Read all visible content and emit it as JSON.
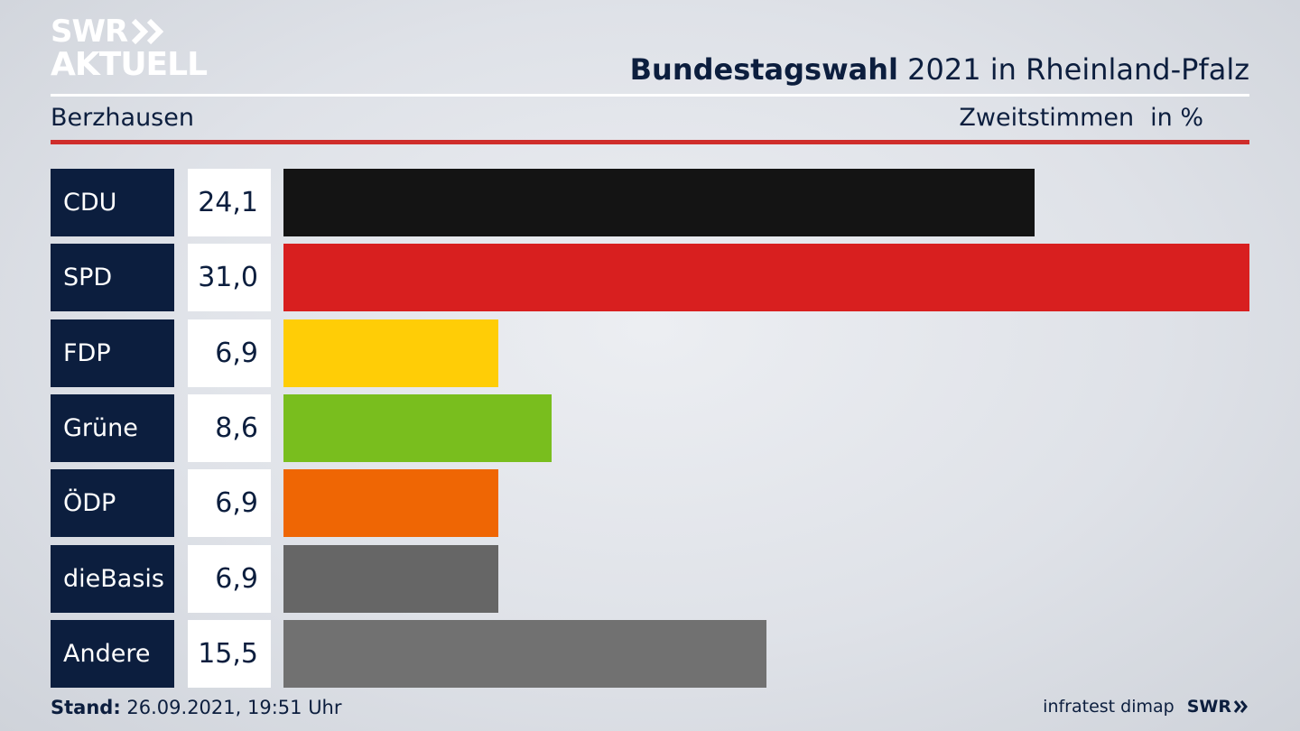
{
  "logo": {
    "line1": "SWR",
    "line2": "AKTUELL"
  },
  "header": {
    "title_bold": "Bundestagswahl",
    "title_rest": "2021 in Rheinland-Pfalz",
    "region": "Berzhausen",
    "measure": "Zweitstimmen",
    "unit": "in %"
  },
  "chart_data": {
    "type": "bar",
    "orientation": "horizontal",
    "categories": [
      "CDU",
      "SPD",
      "FDP",
      "Grüne",
      "ÖDP",
      "dieBasis",
      "Andere"
    ],
    "values": [
      24.1,
      31.0,
      6.9,
      8.6,
      6.9,
      6.9,
      15.5
    ],
    "value_labels": [
      "24,1",
      "31,0",
      "6,9",
      "8,6",
      "6,9",
      "6,9",
      "15,5"
    ],
    "colors": [
      "#141414",
      "#d81f1f",
      "#ffcd06",
      "#79be1e",
      "#ef6604",
      "#666666",
      "#717171"
    ],
    "title": "Bundestagswahl 2021 in Rheinland-Pfalz",
    "xlabel": "",
    "ylabel": ""
  },
  "footer": {
    "stand_label": "Stand:",
    "stand_value": "26.09.2021, 19:51 Uhr",
    "source": "infratest dimap",
    "brand": "SWR"
  }
}
